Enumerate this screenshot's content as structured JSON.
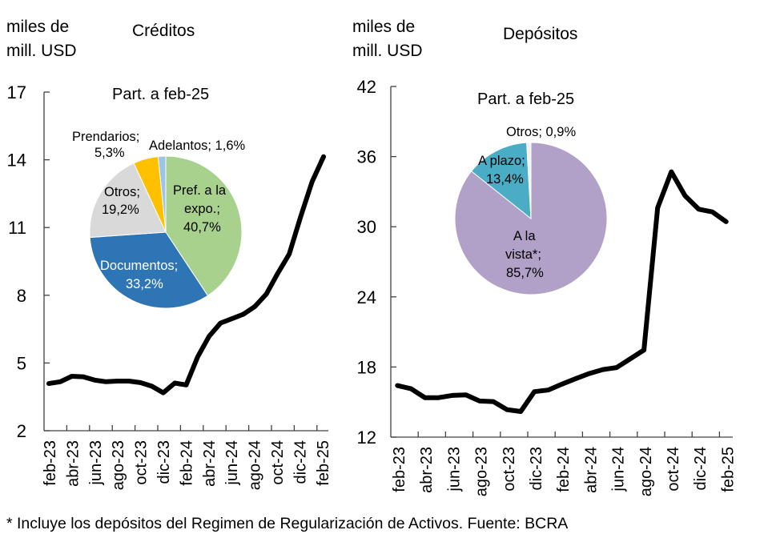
{
  "footnote": "* Incluye los depósitos del Regimen de Regularización de Activos. Fuente: BCRA",
  "chart_data": [
    {
      "type": "line",
      "title": "Créditos",
      "ylabel": [
        "miles de",
        "mill. USD"
      ],
      "xlabel": "",
      "ylim": [
        2,
        17
      ],
      "yticks": [
        2,
        5,
        8,
        11,
        14,
        17
      ],
      "x": [
        "feb-23",
        "mar-23",
        "abr-23",
        "may-23",
        "jun-23",
        "jul-23",
        "ago-23",
        "sep-23",
        "oct-23",
        "nov-23",
        "dic-23",
        "ene-24",
        "feb-24",
        "mar-24",
        "abr-24",
        "may-24",
        "jun-24",
        "jul-24",
        "ago-24",
        "sep-24",
        "oct-24",
        "nov-24",
        "dic-24",
        "ene-25",
        "feb-25"
      ],
      "xtick_labels": [
        "feb-23",
        "abr-23",
        "jun-23",
        "ago-23",
        "oct-23",
        "dic-23",
        "feb-24",
        "abr-24",
        "jun-24",
        "ago-24",
        "oct-24",
        "dic-24",
        "feb-25"
      ],
      "series": [
        {
          "name": "Créditos",
          "color": "#000000",
          "values": [
            4.09,
            4.17,
            4.41,
            4.39,
            4.24,
            4.17,
            4.2,
            4.2,
            4.13,
            3.97,
            3.68,
            4.11,
            4.03,
            5.27,
            6.18,
            6.77,
            6.96,
            7.16,
            7.5,
            8.05,
            8.97,
            9.82,
            11.48,
            13.03,
            14.14
          ]
        }
      ],
      "grid": false,
      "inset": {
        "type": "pie",
        "title": "Part. a feb-25",
        "slices": [
          {
            "label": "Pref. a la expo.;",
            "value": 40.7,
            "value_label": "40,7%",
            "color": "#a9d18e"
          },
          {
            "label": "Documentos;",
            "value": 33.2,
            "value_label": "33,2%",
            "color": "#2e75b6"
          },
          {
            "label": "Otros;",
            "value": 19.2,
            "value_label": "19,2%",
            "color": "#d9d9d9"
          },
          {
            "label": "Prendarios;",
            "value": 5.3,
            "value_label": "5,3%",
            "color": "#ffc000"
          },
          {
            "label": "Adelantos;",
            "value": 1.6,
            "value_label": "1,6%",
            "color": "#9dc3e6"
          }
        ]
      }
    },
    {
      "type": "line",
      "title": "Depósitos",
      "ylabel": [
        "miles de",
        "mill. USD"
      ],
      "xlabel": "",
      "ylim": [
        12,
        42
      ],
      "yticks": [
        12,
        18,
        24,
        30,
        36,
        42
      ],
      "x": [
        "feb-23",
        "mar-23",
        "abr-23",
        "may-23",
        "jun-23",
        "jul-23",
        "ago-23",
        "sep-23",
        "oct-23",
        "nov-23",
        "dic-23",
        "ene-24",
        "feb-24",
        "mar-24",
        "abr-24",
        "may-24",
        "jun-24",
        "jul-24",
        "ago-24",
        "sep-24",
        "oct-24",
        "nov-24",
        "dic-24",
        "ene-25",
        "feb-25"
      ],
      "xtick_labels": [
        "feb-23",
        "abr-23",
        "jun-23",
        "ago-23",
        "oct-23",
        "dic-23",
        "feb-24",
        "abr-24",
        "jun-24",
        "ago-24",
        "oct-24",
        "dic-24",
        "feb-25"
      ],
      "series": [
        {
          "name": "Depósitos",
          "color": "#000000",
          "values": [
            16.41,
            16.14,
            15.38,
            15.38,
            15.57,
            15.61,
            15.09,
            15.04,
            14.35,
            14.19,
            15.89,
            16.03,
            16.53,
            16.99,
            17.44,
            17.78,
            17.95,
            18.7,
            19.45,
            31.62,
            34.7,
            32.65,
            31.5,
            31.27,
            30.43
          ]
        }
      ],
      "grid": false,
      "inset": {
        "type": "pie",
        "title": "Part. a feb-25",
        "slices": [
          {
            "label": "A la vista*;",
            "value": 85.7,
            "value_label": "85,7%",
            "color": "#b1a0c7"
          },
          {
            "label": "A plazo;",
            "value": 13.4,
            "value_label": "13,4%",
            "color": "#4bacc6"
          },
          {
            "label": "Otros;",
            "value": 0.9,
            "value_label": "0,9%",
            "color": "#f2f2f2"
          }
        ]
      }
    }
  ],
  "text": {
    "left_units_1": "miles de",
    "left_units_2": "mill. USD",
    "left_title": "Créditos",
    "left_pie_title": "Part. a feb-25",
    "right_units_1": "miles de",
    "right_units_2": "mill. USD",
    "right_title": "Depósitos",
    "right_pie_title": "Part. a feb-25",
    "lp_pref_1": "Pref. a la",
    "lp_pref_2": "expo.;",
    "lp_pref_3": "40,7%",
    "lp_doc_1": "Documentos;",
    "lp_doc_2": "33,2%",
    "lp_otros_1": "Otros;",
    "lp_otros_2": "19,2%",
    "lp_pren_1": "Prendarios;",
    "lp_pren_2": "5,3%",
    "lp_adel": "Adelantos; 1,6%",
    "rp_vista_1": "A la",
    "rp_vista_2": "vista*;",
    "rp_vista_3": "85,7%",
    "rp_plazo_1": "A plazo;",
    "rp_plazo_2": "13,4%",
    "rp_otros": "Otros; 0,9%"
  }
}
